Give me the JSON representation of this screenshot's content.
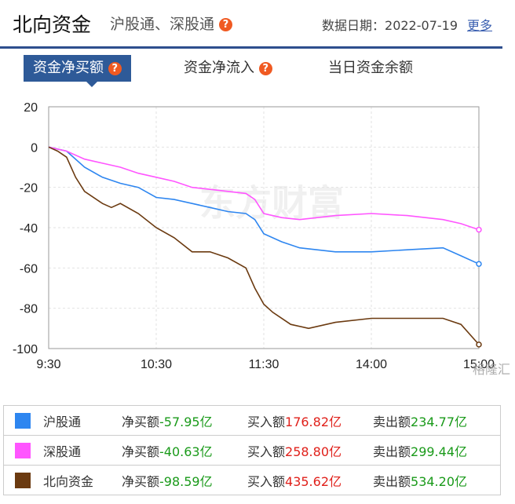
{
  "header": {
    "title": "北向资金",
    "subtitle": "沪股通、深股通",
    "help_mark": "?",
    "date_label": "数据日期：",
    "date": "2022-07-19",
    "more": "更多"
  },
  "tabs": [
    {
      "label": "资金净买额",
      "active": true,
      "help": true
    },
    {
      "label": "资金净流入",
      "active": false,
      "help": true
    },
    {
      "label": "当日资金余额",
      "active": false,
      "help": false
    }
  ],
  "watermark": "东方财富",
  "corner_watermark": "格隆汇",
  "chart_data": {
    "type": "line",
    "xlim": [
      "9:30",
      "15:00"
    ],
    "x_ticks": [
      "9:30",
      "10:30",
      "11:30",
      "14:00",
      "15:00"
    ],
    "ylim": [
      -100,
      20
    ],
    "y_ticks": [
      20,
      0,
      -20,
      -40,
      -60,
      -80,
      -100
    ],
    "grid": true,
    "series": [
      {
        "name": "沪股通",
        "color": "#2e86f0",
        "points": [
          [
            "9:30",
            0
          ],
          [
            "9:40",
            -2
          ],
          [
            "9:50",
            -10
          ],
          [
            "10:00",
            -15
          ],
          [
            "10:10",
            -18
          ],
          [
            "10:20",
            -20
          ],
          [
            "10:30",
            -25
          ],
          [
            "10:40",
            -26
          ],
          [
            "10:50",
            -28
          ],
          [
            "11:00",
            -30
          ],
          [
            "11:10",
            -32
          ],
          [
            "11:20",
            -33
          ],
          [
            "11:25",
            -36
          ],
          [
            "11:30",
            -43
          ],
          [
            "13:10",
            -47
          ],
          [
            "13:20",
            -50
          ],
          [
            "13:40",
            -52
          ],
          [
            "14:00",
            -52
          ],
          [
            "14:20",
            -51
          ],
          [
            "14:40",
            -50
          ],
          [
            "14:50",
            -54
          ],
          [
            "15:00",
            -58
          ]
        ]
      },
      {
        "name": "深股通",
        "color": "#ff55ff",
        "points": [
          [
            "9:30",
            0
          ],
          [
            "9:40",
            -2
          ],
          [
            "9:50",
            -6
          ],
          [
            "10:00",
            -8
          ],
          [
            "10:10",
            -10
          ],
          [
            "10:20",
            -13
          ],
          [
            "10:30",
            -15
          ],
          [
            "10:40",
            -17
          ],
          [
            "10:50",
            -20
          ],
          [
            "11:00",
            -21
          ],
          [
            "11:10",
            -22
          ],
          [
            "11:20",
            -23
          ],
          [
            "11:25",
            -26
          ],
          [
            "11:30",
            -33
          ],
          [
            "13:10",
            -35
          ],
          [
            "13:20",
            -36
          ],
          [
            "13:40",
            -34
          ],
          [
            "14:00",
            -33
          ],
          [
            "14:20",
            -34
          ],
          [
            "14:40",
            -36
          ],
          [
            "14:50",
            -38
          ],
          [
            "15:00",
            -41
          ]
        ]
      },
      {
        "name": "北向资金",
        "color": "#6b3a10",
        "points": [
          [
            "9:30",
            0
          ],
          [
            "9:35",
            -2
          ],
          [
            "9:40",
            -5
          ],
          [
            "9:45",
            -15
          ],
          [
            "9:50",
            -22
          ],
          [
            "10:00",
            -28
          ],
          [
            "10:05",
            -30
          ],
          [
            "10:10",
            -28
          ],
          [
            "10:20",
            -33
          ],
          [
            "10:30",
            -40
          ],
          [
            "10:40",
            -45
          ],
          [
            "10:50",
            -52
          ],
          [
            "11:00",
            -52
          ],
          [
            "11:10",
            -55
          ],
          [
            "11:20",
            -60
          ],
          [
            "11:25",
            -70
          ],
          [
            "11:30",
            -78
          ],
          [
            "13:05",
            -82
          ],
          [
            "13:15",
            -88
          ],
          [
            "13:25",
            -90
          ],
          [
            "13:40",
            -87
          ],
          [
            "14:00",
            -85
          ],
          [
            "14:20",
            -85
          ],
          [
            "14:40",
            -85
          ],
          [
            "14:50",
            -88
          ],
          [
            "15:00",
            -98
          ]
        ]
      }
    ]
  },
  "legend": [
    {
      "name": "沪股通",
      "color": "#2e86f0",
      "net_label": "净买额",
      "net_value": "-57.95亿",
      "buy_label": "买入额",
      "buy_value": "176.82亿",
      "sell_label": "卖出额",
      "sell_value": "234.77亿"
    },
    {
      "name": "深股通",
      "color": "#ff55ff",
      "net_label": "净买额",
      "net_value": "-40.63亿",
      "buy_label": "买入额",
      "buy_value": "258.80亿",
      "sell_label": "卖出额",
      "sell_value": "299.44亿"
    },
    {
      "name": "北向资金",
      "color": "#6b3a10",
      "net_label": "净买额",
      "net_value": "-98.59亿",
      "buy_label": "买入额",
      "buy_value": "435.62亿",
      "sell_label": "卖出额",
      "sell_value": "534.20亿"
    }
  ]
}
